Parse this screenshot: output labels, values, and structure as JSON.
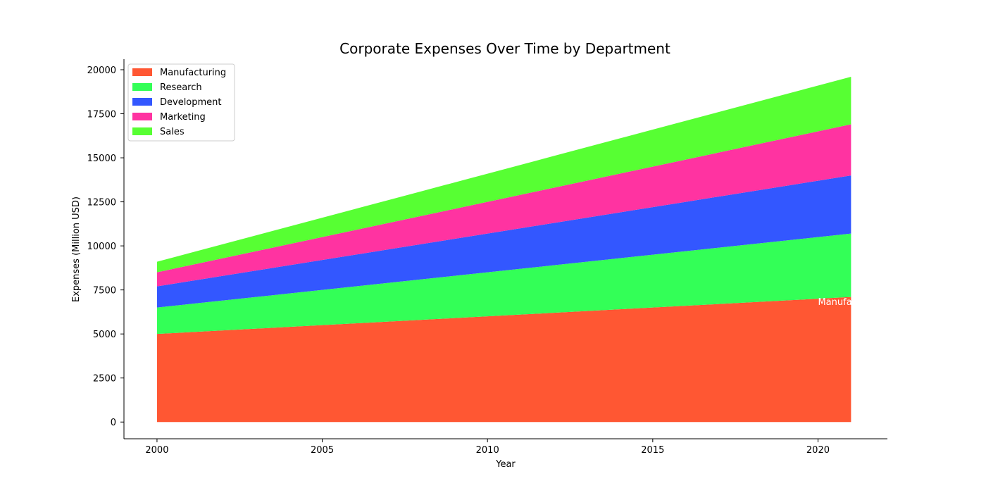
{
  "chart_data": {
    "type": "area",
    "stacked": true,
    "title": "Corporate Expenses Over Time by Department",
    "xlabel": "Year",
    "ylabel": "Expenses (Million USD)",
    "x": [
      2000,
      2001,
      2002,
      2003,
      2004,
      2005,
      2006,
      2007,
      2008,
      2009,
      2010,
      2011,
      2012,
      2013,
      2014,
      2015,
      2016,
      2017,
      2018,
      2019,
      2020,
      2021
    ],
    "xlim": [
      1999,
      2022.1
    ],
    "ylim": [
      -950,
      20600
    ],
    "xticks": [
      2000,
      2005,
      2010,
      2015,
      2020
    ],
    "yticks": [
      0,
      2500,
      5000,
      7500,
      10000,
      12500,
      15000,
      17500,
      20000
    ],
    "legend_position": "upper-left",
    "grid": false,
    "series": [
      {
        "name": "Manufacturing",
        "color": "#FF5733",
        "values": [
          5000,
          5100,
          5200,
          5300,
          5400,
          5500,
          5600,
          5700,
          5800,
          5900,
          6000,
          6100,
          6200,
          6300,
          6400,
          6500,
          6600,
          6700,
          6800,
          6900,
          7000,
          7100
        ]
      },
      {
        "name": "Research",
        "color": "#33FF57",
        "values": [
          1500,
          1600,
          1700,
          1800,
          1900,
          2000,
          2100,
          2200,
          2300,
          2400,
          2500,
          2600,
          2700,
          2800,
          2900,
          3000,
          3100,
          3200,
          3300,
          3400,
          3500,
          3600
        ]
      },
      {
        "name": "Development",
        "color": "#3357FF",
        "values": [
          1200,
          1300,
          1400,
          1500,
          1600,
          1700,
          1800,
          1900,
          2000,
          2100,
          2200,
          2300,
          2400,
          2500,
          2600,
          2700,
          2800,
          2900,
          3000,
          3100,
          3200,
          3300
        ]
      },
      {
        "name": "Marketing",
        "color": "#FF33A1",
        "values": [
          800,
          900,
          1000,
          1100,
          1200,
          1300,
          1400,
          1500,
          1600,
          1700,
          1800,
          1900,
          2000,
          2100,
          2200,
          2300,
          2400,
          2500,
          2600,
          2700,
          2800,
          2900
        ]
      },
      {
        "name": "Sales",
        "color": "#57FF33",
        "values": [
          600,
          700,
          800,
          900,
          1000,
          1100,
          1200,
          1300,
          1400,
          1500,
          1600,
          1700,
          1800,
          1900,
          2000,
          2100,
          2200,
          2300,
          2400,
          2500,
          2600,
          2700
        ]
      }
    ],
    "annotations": [
      {
        "text": "Manufa",
        "x": 2020,
        "y": 6850,
        "color": "#ffffff"
      }
    ]
  }
}
